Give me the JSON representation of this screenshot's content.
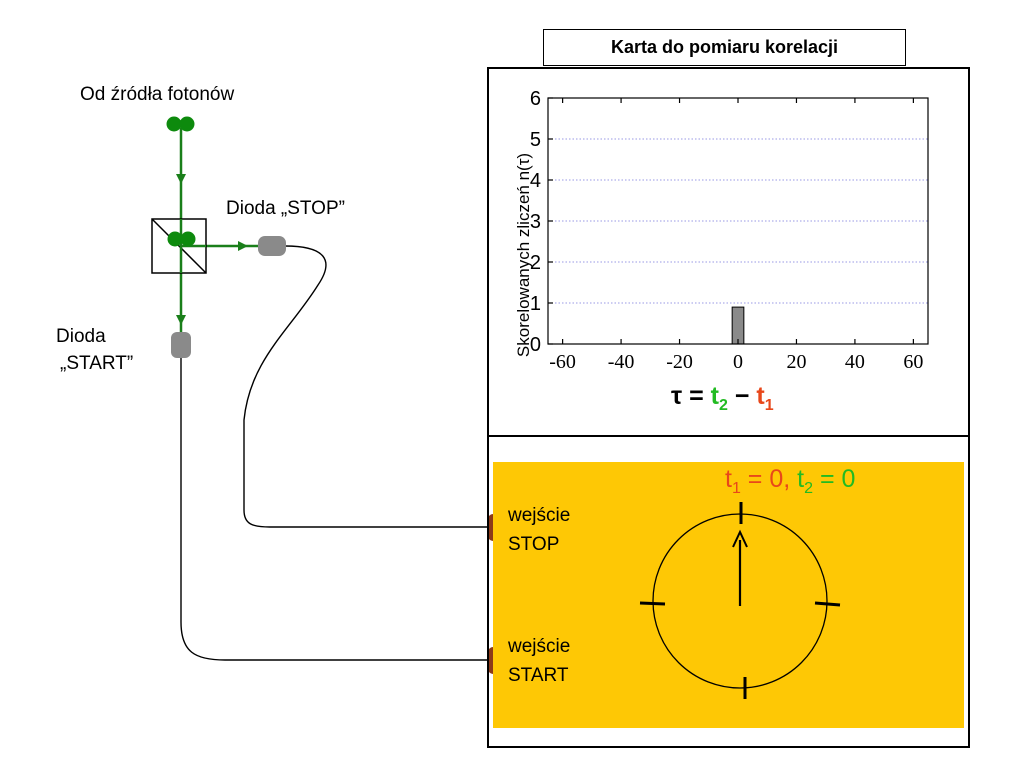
{
  "source_label": "Od źródła fotonów",
  "diode_stop_label": "Dioda „STOP”",
  "diode_start_label_line1": "Dioda",
  "diode_start_label_line2": "„START”",
  "card": {
    "title": "Karta do pomiaru korelacji",
    "input_stop_line1": "wejście",
    "input_stop_line2": "STOP",
    "input_start_line1": "wejście",
    "input_start_line2": "START"
  },
  "formula": {
    "tau": "τ",
    "equals": " = ",
    "t": "t",
    "sub2": "2",
    "minus": " − ",
    "sub1": "1"
  },
  "clock_formula": {
    "t": "t",
    "sub1": "1",
    "part1": " = 0,",
    "space": " ",
    "sub2": "2",
    "part2": " = 0"
  },
  "colors": {
    "beam": "#1a7f1a",
    "photon": "#0d8a0d",
    "diode": "#8a8a8a",
    "connector": "#8b3a1a",
    "panel": "#fec805",
    "t2": "#22bb22",
    "t1": "#e8471a",
    "grid": "#7777dd"
  },
  "chart_data": {
    "type": "bar",
    "ylabel": "Skorelowanych zliczeń n(τ)",
    "xlabel": "τ = t2 − t1",
    "x_ticks": [
      -60,
      -40,
      -20,
      0,
      20,
      40,
      60
    ],
    "y_ticks": [
      0,
      1,
      2,
      3,
      4,
      5,
      6
    ],
    "xlim": [
      -65,
      65
    ],
    "ylim": [
      0,
      6
    ],
    "grid": "horizontal dotted",
    "bars": [
      {
        "x": 0,
        "width": 4,
        "value": 0.9
      }
    ]
  }
}
